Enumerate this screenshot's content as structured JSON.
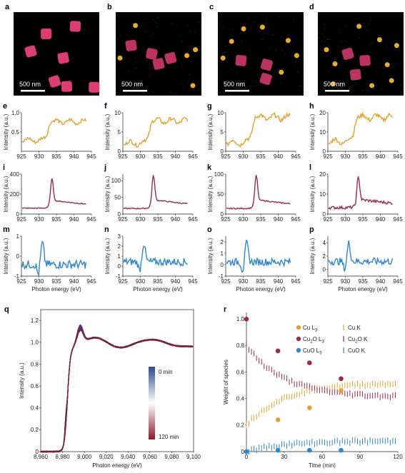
{
  "colors": {
    "cu": "#E8A02C",
    "cu2o": "#9C2A4E",
    "cuo": "#2E86D6",
    "bg": "#000000",
    "particle": "#E8407A",
    "dot": "#F7B52E"
  },
  "panel_labels": [
    "a",
    "b",
    "c",
    "d",
    "e",
    "f",
    "g",
    "h",
    "i",
    "j",
    "k",
    "l",
    "m",
    "n",
    "o",
    "p",
    "q",
    "r"
  ],
  "micrographs": {
    "scale_text": "500 nm",
    "panels": [
      {
        "label": "a",
        "particles": [
          [
            0.38,
            0.26
          ],
          [
            0.72,
            0.17
          ],
          [
            0.2,
            0.47
          ],
          [
            0.58,
            0.55
          ],
          [
            0.62,
            0.89
          ],
          [
            0.94,
            0.9
          ],
          [
            0.48,
            0.83
          ]
        ],
        "dots": []
      },
      {
        "label": "b",
        "particles": [
          [
            0.18,
            0.4
          ],
          [
            0.42,
            0.5
          ],
          [
            0.64,
            0.55
          ],
          [
            0.5,
            0.62
          ]
        ],
        "dots": [
          [
            0.05,
            0.55
          ],
          [
            0.83,
            0.52
          ],
          [
            0.93,
            0.45
          ],
          [
            0.9,
            0.88
          ],
          [
            0.23,
            0.16
          ]
        ]
      },
      {
        "label": "c",
        "particles": [
          [
            0.27,
            0.58
          ],
          [
            0.57,
            0.63
          ],
          [
            0.56,
            0.8
          ]
        ],
        "dots": [
          [
            0.16,
            0.35
          ],
          [
            0.3,
            0.2
          ],
          [
            0.06,
            0.55
          ],
          [
            0.92,
            0.52
          ],
          [
            0.74,
            0.72
          ],
          [
            0.52,
            0.18
          ],
          [
            0.82,
            0.34
          ]
        ]
      },
      {
        "label": "d",
        "particles": [
          [
            0.35,
            0.5
          ],
          [
            0.55,
            0.58
          ],
          [
            0.44,
            0.75
          ]
        ],
        "dots": [
          [
            0.1,
            0.45
          ],
          [
            0.2,
            0.62
          ],
          [
            0.81,
            0.63
          ],
          [
            0.92,
            0.4
          ],
          [
            0.63,
            0.88
          ],
          [
            0.86,
            0.82
          ],
          [
            0.18,
            0.86
          ],
          [
            0.72,
            0.33
          ],
          [
            0.48,
            0.17
          ]
        ]
      }
    ]
  },
  "spectra": {
    "xlabel": "Photon energy (eV)",
    "ylabel": "Intensity (a.u.)",
    "xticks": [
      925,
      930,
      935,
      940,
      945
    ],
    "rows": [
      {
        "species": "cu",
        "panels": [
          {
            "label": "e",
            "ylim": [
              0,
              1.0
            ],
            "yticks": [
              0.5,
              1.0
            ],
            "ytick_labels": [
              "0.5",
              "1.0"
            ]
          },
          {
            "label": "f",
            "ylim": [
              0,
              10
            ],
            "yticks": [
              0,
              5,
              10
            ],
            "ytick_labels": [
              "0",
              "5",
              "10"
            ]
          },
          {
            "label": "g",
            "ylim": [
              0,
              10
            ],
            "yticks": [
              0,
              5,
              10
            ],
            "ytick_labels": [
              "0",
              "5",
              "10"
            ]
          },
          {
            "label": "h",
            "ylim": [
              0,
              20
            ],
            "yticks": [
              0,
              10,
              20
            ],
            "ytick_labels": [
              "0",
              "10",
              "20"
            ]
          }
        ]
      },
      {
        "species": "cu2o",
        "panels": [
          {
            "label": "i",
            "ylim": [
              0,
              400
            ],
            "yticks": [
              0,
              200,
              400
            ],
            "ytick_labels": [
              "0",
              "200",
              "400"
            ]
          },
          {
            "label": "j",
            "ylim": [
              0,
              120
            ],
            "yticks": [
              0,
              50,
              100
            ],
            "ytick_labels": [
              "0",
              "50",
              "100"
            ]
          },
          {
            "label": "k",
            "ylim": [
              0,
              100
            ],
            "yticks": [
              0,
              50,
              100
            ],
            "ytick_labels": [
              "0",
              "50",
              "100"
            ]
          },
          {
            "label": "l",
            "ylim": [
              0,
              20
            ],
            "yticks": [
              0,
              10,
              20
            ],
            "ytick_labels": [
              "0",
              "10",
              "20"
            ]
          }
        ]
      },
      {
        "species": "cuo",
        "panels": [
          {
            "label": "m",
            "ylim": [
              -1,
              1
            ],
            "yticks": [
              -1,
              0,
              1
            ],
            "ytick_labels": [
              "-1",
              "0",
              "1"
            ]
          },
          {
            "label": "n",
            "ylim": [
              -1,
              3
            ],
            "yticks": [
              -1,
              0,
              1,
              2,
              3
            ],
            "ytick_labels": [
              "-1",
              "0",
              "1",
              "2",
              "3"
            ]
          },
          {
            "label": "o",
            "ylim": [
              -1,
              2.5
            ],
            "yticks": [
              -1,
              0,
              1,
              2
            ],
            "ytick_labels": [
              "-1",
              "0",
              "1",
              "2"
            ]
          },
          {
            "label": "p",
            "ylim": [
              -1,
              5
            ],
            "yticks": [
              0,
              2,
              4
            ],
            "ytick_labels": [
              "0",
              "2",
              "4"
            ]
          }
        ]
      }
    ]
  },
  "chart_data": [
    {
      "label": "q",
      "type": "line",
      "xlabel": "Photon energy (eV)",
      "ylabel": "Intensity (a.u.)",
      "xlim": [
        8960,
        9100
      ],
      "ylim": [
        0,
        1.3
      ],
      "xticks": [
        8960,
        8980,
        9000,
        9020,
        9040,
        9060,
        9080,
        9100
      ],
      "xtick_labels": [
        "8,960",
        "8,980",
        "9,000",
        "9,020",
        "9,040",
        "9,060",
        "9,080",
        "9,100"
      ],
      "yticks": [
        0,
        0.2,
        0.4,
        0.6,
        0.8,
        1.0,
        1.2
      ],
      "ytick_labels": [
        "0",
        "0.2",
        "0.4",
        "0.6",
        "0.8",
        "1.0",
        "1.2"
      ],
      "colorbar": {
        "top_label": "0 min",
        "bottom_label": "120 min",
        "top_color": "#2C4A8C",
        "bottom_color": "#8A1A2A"
      },
      "series_count": 12
    },
    {
      "label": "r",
      "type": "scatter",
      "xlabel": "Time (min)",
      "ylabel": "Weight of species",
      "xlim": [
        0,
        120
      ],
      "ylim": [
        0,
        1.05
      ],
      "xticks": [
        0,
        30,
        60,
        90,
        120
      ],
      "yticks": [
        0,
        0.2,
        0.4,
        0.6,
        0.8,
        1.0
      ],
      "ytick_labels": [
        "0",
        "0.2",
        "0.4",
        "0.6",
        "0.8",
        "1.0"
      ],
      "legend": [
        {
          "species": "cu",
          "kind": "dot",
          "label": "Cu L",
          "sub": "3"
        },
        {
          "species": "cu",
          "kind": "bar",
          "label": "Cu K",
          "sub": ""
        },
        {
          "species": "cu2o",
          "kind": "dot",
          "label": "Cu",
          "sub": "2",
          "label2": "O L",
          "sub2": "3"
        },
        {
          "species": "cu2o",
          "kind": "bar",
          "label": "Cu",
          "sub": "2",
          "label2": "O K",
          "sub2": ""
        },
        {
          "species": "cuo",
          "kind": "dot",
          "label": "CuO L",
          "sub": "3"
        },
        {
          "species": "cuo",
          "kind": "bar",
          "label": "CuO K",
          "sub": ""
        }
      ],
      "L3_points": {
        "x": [
          0,
          25,
          50,
          75
        ],
        "cu": [
          0.0,
          0.24,
          0.33,
          0.46
        ],
        "cu2o": [
          1.0,
          0.76,
          0.67,
          0.55
        ],
        "cuo": [
          0.0,
          0.01,
          0.01,
          0.01
        ]
      },
      "K_trend": {
        "cu_start": 0.2,
        "cu_end": 0.52,
        "cu2o_start": 0.8,
        "cu2o_end": 0.41,
        "cuo_start": 0.0,
        "cuo_end": 0.08,
        "tau": 30
      }
    }
  ]
}
